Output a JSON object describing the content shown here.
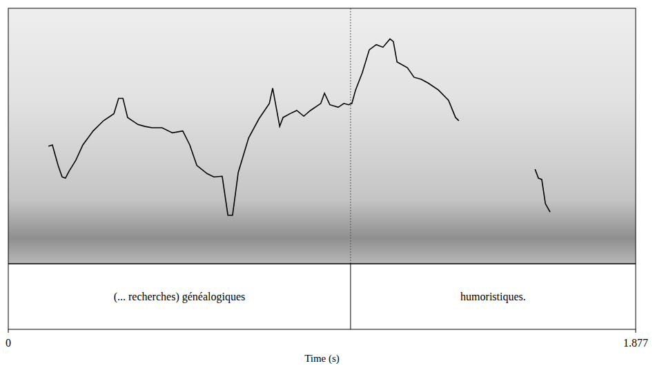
{
  "chart_data": {
    "type": "line",
    "x_label": "Time (s)",
    "xlim": [
      0,
      1.877
    ],
    "xticks": [
      0,
      1.877
    ],
    "ylim": [
      0,
      400
    ],
    "tick_labels": "x",
    "grid": false,
    "color": "#000000",
    "line_style": "solid",
    "x": [
      0.12,
      0.132,
      0.149,
      0.161,
      0.171,
      0.182,
      0.202,
      0.223,
      0.254,
      0.285,
      0.316,
      0.33,
      0.343,
      0.357,
      0.388,
      0.409,
      0.43,
      0.46,
      0.491,
      0.522,
      0.543,
      0.564,
      0.595,
      0.615,
      0.64,
      0.657,
      0.671,
      0.688,
      0.719,
      0.75,
      0.781,
      0.791,
      0.812,
      0.822,
      0.843,
      0.863,
      0.884,
      0.904,
      0.935,
      0.946,
      0.962,
      0.987,
      1.004,
      1.018,
      1.028,
      1.039,
      1.059,
      1.08,
      1.101,
      1.121,
      1.142,
      1.152,
      1.163,
      1.194,
      1.214,
      1.235,
      1.256,
      1.287,
      1.317,
      1.338,
      1.348,
      1.46,
      1.576,
      1.586,
      1.596,
      1.607,
      1.621
    ],
    "values": [
      184,
      186,
      154,
      136,
      134,
      145,
      162,
      186,
      208,
      224,
      235,
      259,
      259,
      229,
      218,
      215,
      213,
      213,
      205,
      208,
      186,
      154,
      141,
      136,
      137,
      76,
      76,
      143,
      197,
      227,
      251,
      275,
      215,
      229,
      235,
      240,
      231,
      240,
      251,
      267,
      249,
      245,
      251,
      249,
      251,
      272,
      299,
      335,
      343,
      339,
      352,
      348,
      316,
      307,
      292,
      289,
      283,
      272,
      256,
      229,
      224,
      null,
      148,
      134,
      132,
      94,
      81
    ],
    "intervals": [
      {
        "label": "(... recherches) généalogiques",
        "xlim": [
          0,
          1.024
        ]
      },
      {
        "label": "humoristiques.",
        "xlim": [
          1.024,
          1.877
        ]
      }
    ]
  }
}
